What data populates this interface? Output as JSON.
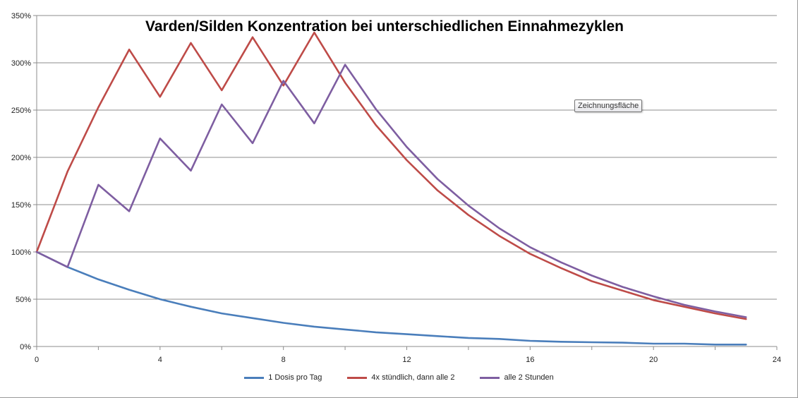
{
  "chart_data": {
    "type": "line",
    "title": "Varden/Silden Konzentration bei unterschiedlichen Einnahmezyklen",
    "xlabel": "",
    "ylabel": "",
    "xlim": [
      0,
      24
    ],
    "ylim": [
      0,
      3.5
    ],
    "x_ticks": [
      0,
      4,
      8,
      12,
      16,
      20,
      24
    ],
    "x_tick_labels": [
      "0",
      "4",
      "8",
      "12",
      "16",
      "20",
      "24"
    ],
    "y_ticks": [
      0,
      0.5,
      1.0,
      1.5,
      2.0,
      2.5,
      3.0,
      3.5
    ],
    "y_tick_labels": [
      "0%",
      "50%",
      "100%",
      "150%",
      "200%",
      "250%",
      "300%",
      "350%"
    ],
    "grid": "horizontal",
    "legend_position": "bottom",
    "x": [
      0,
      1,
      2,
      3,
      4,
      5,
      6,
      7,
      8,
      9,
      10,
      11,
      12,
      13,
      14,
      15,
      16,
      17,
      18,
      19,
      20,
      21,
      22,
      23
    ],
    "series": [
      {
        "name": "1 Dosis pro Tag",
        "color": "#4a7ebb",
        "values": [
          1.0,
          0.84,
          0.71,
          0.6,
          0.5,
          0.42,
          0.35,
          0.3,
          0.25,
          0.21,
          0.18,
          0.15,
          0.13,
          0.11,
          0.09,
          0.08,
          0.06,
          0.05,
          0.045,
          0.04,
          0.03,
          0.03,
          0.02,
          0.02
        ]
      },
      {
        "name": "4x stündlich, dann alle 2",
        "color": "#be4b48",
        "values": [
          1.0,
          1.85,
          2.53,
          3.14,
          2.64,
          3.21,
          2.71,
          3.27,
          2.76,
          3.32,
          2.79,
          2.34,
          1.97,
          1.65,
          1.39,
          1.17,
          0.98,
          0.83,
          0.69,
          0.59,
          0.49,
          0.42,
          0.35,
          0.29
        ]
      },
      {
        "name": "alle 2 Stunden",
        "color": "#7e5ea1",
        "values": [
          1.0,
          0.84,
          1.71,
          1.43,
          2.2,
          1.86,
          2.56,
          2.15,
          2.81,
          2.36,
          2.98,
          2.51,
          2.11,
          1.77,
          1.49,
          1.25,
          1.05,
          0.89,
          0.75,
          0.63,
          0.53,
          0.44,
          0.37,
          0.31
        ]
      }
    ]
  },
  "tooltip": {
    "text": "Zeichnungsfläche"
  }
}
